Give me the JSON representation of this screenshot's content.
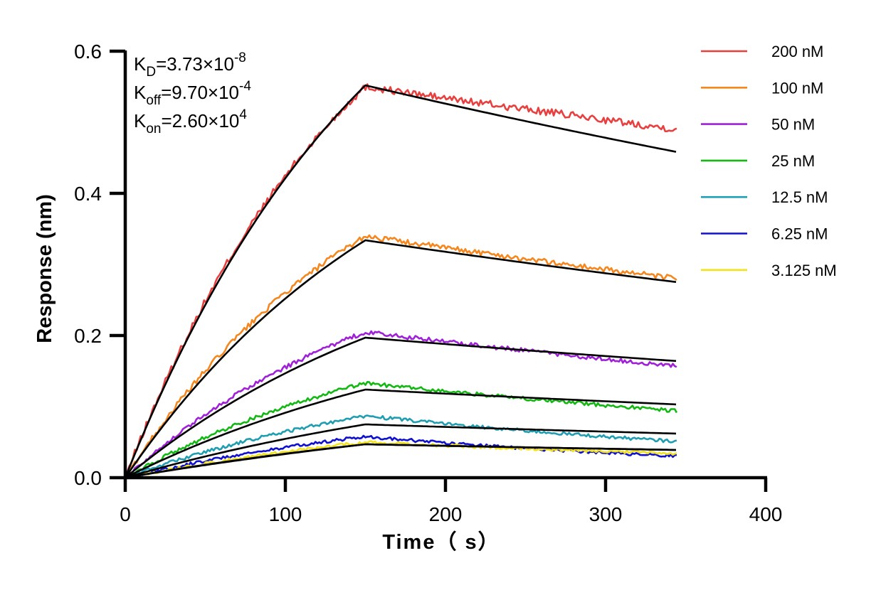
{
  "chart_data": {
    "type": "line",
    "xlabel": "Time（ s）",
    "ylabel": "Response (nm)",
    "xlim": [
      0,
      400
    ],
    "ylim": [
      0,
      0.6
    ],
    "xticks": [
      0,
      100,
      200,
      300,
      400
    ],
    "xtick_labels": [
      "0",
      "100",
      "200",
      "300",
      "400"
    ],
    "yticks": [
      0.0,
      0.2,
      0.4,
      0.6
    ],
    "ytick_labels": [
      "0.0",
      "0.2",
      "0.4",
      "0.6"
    ],
    "grid": false,
    "legend_position": "right",
    "annotations": [
      {
        "name": "kd",
        "main": "K",
        "sub": "D",
        "rest": "=3.73×10",
        "sup": "-8"
      },
      {
        "name": "koff",
        "main": "K",
        "sub": "off",
        "rest": "=9.70×10",
        "sup": "-4"
      },
      {
        "name": "kon",
        "main": "K",
        "sub": "on",
        "rest": "=2.60×10",
        "sup": "4"
      }
    ],
    "association_end": 150,
    "dissociation_end": 345,
    "series": [
      {
        "name": "200 nM",
        "color": "#e8403f",
        "peak": 0.55,
        "end": 0.49
      },
      {
        "name": "100 nM",
        "color": "#f5871f",
        "peak": 0.34,
        "end": 0.28
      },
      {
        "name": "50 nM",
        "color": "#a020d8",
        "peak": 0.205,
        "end": 0.157
      },
      {
        "name": "25 nM",
        "color": "#13b813",
        "peak": 0.133,
        "end": 0.094
      },
      {
        "name": "12.5 nM",
        "color": "#1f9eb2",
        "peak": 0.087,
        "end": 0.051
      },
      {
        "name": "6.25 nM",
        "color": "#1010d0",
        "peak": 0.058,
        "end": 0.03
      },
      {
        "name": "3.125 nM",
        "color": "#f2e21b",
        "peak": 0.05,
        "end": 0.034
      }
    ],
    "fits": [
      {
        "peak": 0.552,
        "end": 0.458
      },
      {
        "peak": 0.334,
        "end": 0.275
      },
      {
        "peak": 0.197,
        "end": 0.164
      },
      {
        "peak": 0.124,
        "end": 0.103
      },
      {
        "peak": 0.075,
        "end": 0.062
      },
      {
        "peak": 0.047,
        "end": 0.039
      },
      {
        "peak": 0.047,
        "end": 0.039
      }
    ],
    "fit_color": "#000000"
  }
}
